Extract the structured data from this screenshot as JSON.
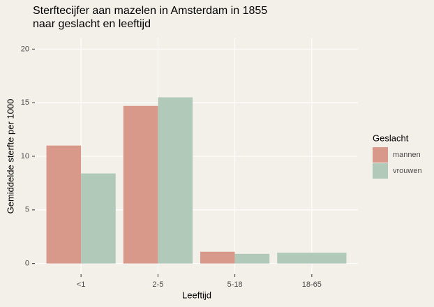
{
  "chart_data": {
    "type": "bar",
    "title": "Sterftecijfer aan mazelen in Amsterdam in 1855 naar geslacht en leeftijd",
    "x_label": "Leeftijd",
    "y_label": "Gemiddelde sterfte per 1000",
    "legend_title": "Geslacht",
    "categories": [
      "<1",
      "2-5",
      "5-18",
      "18-65"
    ],
    "series": [
      {
        "name": "mannen",
        "color": "#d8998b",
        "values": [
          11.0,
          14.7,
          1.1,
          null
        ]
      },
      {
        "name": "vrouwen",
        "color": "#b0c9b8",
        "values": [
          8.4,
          15.5,
          0.9,
          1.0
        ]
      }
    ],
    "ylim": [
      -1,
      21
    ],
    "yticks": [
      0,
      5,
      10,
      15,
      20
    ],
    "grid": true,
    "legend": "right"
  }
}
